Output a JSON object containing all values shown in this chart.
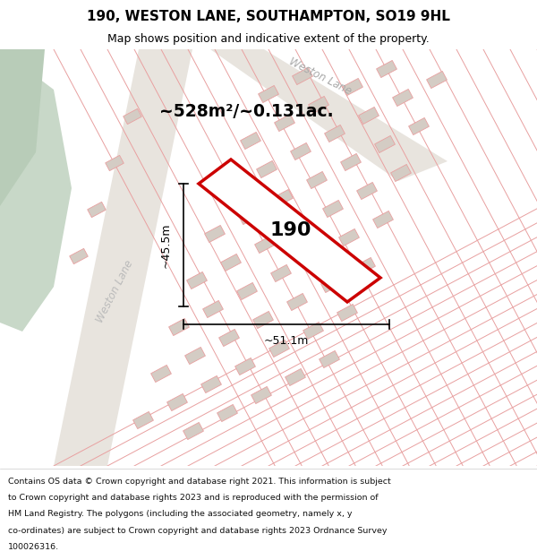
{
  "title_line1": "190, WESTON LANE, SOUTHAMPTON, SO19 9HL",
  "title_line2": "Map shows position and indicative extent of the property.",
  "area_text": "~528m²/~0.131ac.",
  "label_190": "190",
  "dim_height": "~45.5m",
  "dim_width": "~51.1m",
  "road_label_top": "Weston Lane",
  "road_label_left": "Weston Lane",
  "footer_lines": [
    "Contains OS data © Crown copyright and database right 2021. This information is subject",
    "to Crown copyright and database rights 2023 and is reproduced with the permission of",
    "HM Land Registry. The polygons (including the associated geometry, namely x, y",
    "co-ordinates) are subject to Crown copyright and database rights 2023 Ordnance Survey",
    "100026316."
  ],
  "map_bg": "#f2eeea",
  "plot_line_color": "#e8a0a0",
  "highlight_color": "#cc0000",
  "green_color1": "#c8d8c8",
  "green_color2": "#b8ccb8",
  "road_color": "#e8e4de"
}
